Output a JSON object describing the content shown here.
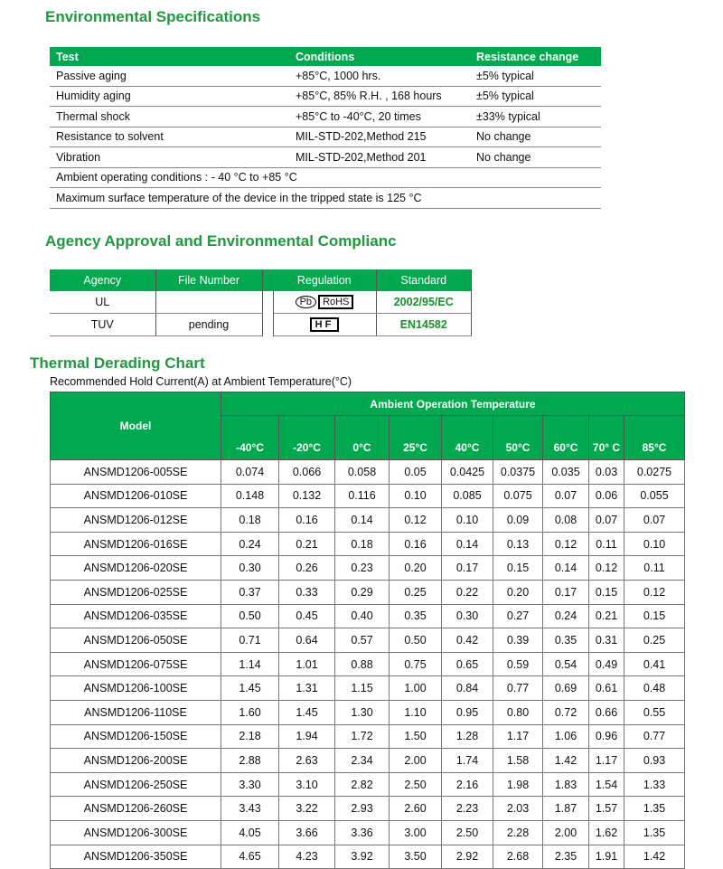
{
  "env": {
    "title": "Environmental Specifications",
    "headers": [
      "Test",
      "Conditions",
      "Resistance change"
    ],
    "rows": [
      [
        "Passive aging",
        "+85°C, 1000 hrs.",
        "±5% typical"
      ],
      [
        "Humidity aging",
        "+85°C, 85% R.H. , 168 hours",
        "±5% typical"
      ],
      [
        "Thermal shock",
        "+85°C to -40°C, 20 times",
        "±33% typical"
      ],
      [
        "Resistance to solvent",
        "MIL-STD-202,Method 215",
        "No change"
      ],
      [
        "Vibration",
        "MIL-STD-202,Method 201",
        "No change"
      ]
    ],
    "notes": [
      "Ambient operating conditions : - 40 °C to +85 °C",
      "Maximum surface temperature of the device in the tripped state is 125 °C"
    ]
  },
  "agency": {
    "title": "Agency Approval and Environmental Complianc",
    "headers": [
      "Agency",
      "File Number",
      "Regulation",
      "Standard"
    ],
    "rows": [
      {
        "agency": "UL",
        "file": "",
        "regulation": "Pb RoHS",
        "standard": "2002/95/EC"
      },
      {
        "agency": "TUV",
        "file": "pending",
        "regulation": "HF",
        "standard": "EN14582"
      }
    ]
  },
  "thermal": {
    "title": "Thermal Derading Chart",
    "subtitle": "Recommended Hold Current(A) at Ambient Temperature(°C)",
    "model_header": "Model",
    "group_header": "Ambient Operation Temperature",
    "temps": [
      "-40°C",
      "-20°C",
      "0°C",
      "25°C",
      "40°C",
      "50°C",
      "60°C",
      "70° C",
      "85°C"
    ],
    "rows": [
      [
        "ANSMD1206-005SE",
        "0.074",
        "0.066",
        "0.058",
        "0.05",
        "0.0425",
        "0.0375",
        "0.035",
        "0.03",
        "0.0275"
      ],
      [
        "ANSMD1206-010SE",
        "0.148",
        "0.132",
        "0.116",
        "0.10",
        "0.085",
        "0.075",
        "0.07",
        "0.06",
        "0.055"
      ],
      [
        "ANSMD1206-012SE",
        "0.18",
        "0.16",
        "0.14",
        "0.12",
        "0.10",
        "0.09",
        "0.08",
        "0.07",
        "0.07"
      ],
      [
        "ANSMD1206-016SE",
        "0.24",
        "0.21",
        "0.18",
        "0.16",
        "0.14",
        "0.13",
        "0.12",
        "0.11",
        "0.10"
      ],
      [
        "ANSMD1206-020SE",
        "0.30",
        "0.26",
        "0.23",
        "0.20",
        "0.17",
        "0.15",
        "0.14",
        "0.12",
        "0.11"
      ],
      [
        "ANSMD1206-025SE",
        "0.37",
        "0.33",
        "0.29",
        "0.25",
        "0.22",
        "0.20",
        "0.17",
        "0.15",
        "0.12"
      ],
      [
        "ANSMD1206-035SE",
        "0.50",
        "0.45",
        "0.40",
        "0.35",
        "0.30",
        "0.27",
        "0.24",
        "0.21",
        "0.15"
      ],
      [
        "ANSMD1206-050SE",
        "0.71",
        "0.64",
        "0.57",
        "0.50",
        "0.42",
        "0.39",
        "0.35",
        "0.31",
        "0.25"
      ],
      [
        "ANSMD1206-075SE",
        "1.14",
        "1.01",
        "0.88",
        "0.75",
        "0.65",
        "0.59",
        "0.54",
        "0.49",
        "0.41"
      ],
      [
        "ANSMD1206-100SE",
        "1.45",
        "1.31",
        "1.15",
        "1.00",
        "0.84",
        "0.77",
        "0.69",
        "0.61",
        "0.48"
      ],
      [
        "ANSMD1206-110SE",
        "1.60",
        "1.45",
        "1.30",
        "1.10",
        "0.95",
        "0.80",
        "0.72",
        "0.66",
        "0.55"
      ],
      [
        "ANSMD1206-150SE",
        "2.18",
        "1.94",
        "1.72",
        "1.50",
        "1.28",
        "1.17",
        "1.06",
        "0.96",
        "0.77"
      ],
      [
        "ANSMD1206-200SE",
        "2.88",
        "2.63",
        "2.34",
        "2.00",
        "1.74",
        "1.58",
        "1.42",
        "1.17",
        "0.93"
      ],
      [
        "ANSMD1206-250SE",
        "3.30",
        "3.10",
        "2.82",
        "2.50",
        "2.16",
        "1.98",
        "1.83",
        "1.54",
        "1.33"
      ],
      [
        "ANSMD1206-260SE",
        "3.43",
        "3.22",
        "2.93",
        "2.60",
        "2.23",
        "2.03",
        "1.87",
        "1.57",
        "1.35"
      ],
      [
        "ANSMD1206-300SE",
        "4.05",
        "3.66",
        "3.36",
        "3.00",
        "2.50",
        "2.28",
        "2.00",
        "1.62",
        "1.35"
      ],
      [
        "ANSMD1206-350SE",
        "4.65",
        "4.23",
        "3.92",
        "3.50",
        "2.92",
        "2.68",
        "2.35",
        "1.91",
        "1.42"
      ]
    ]
  }
}
